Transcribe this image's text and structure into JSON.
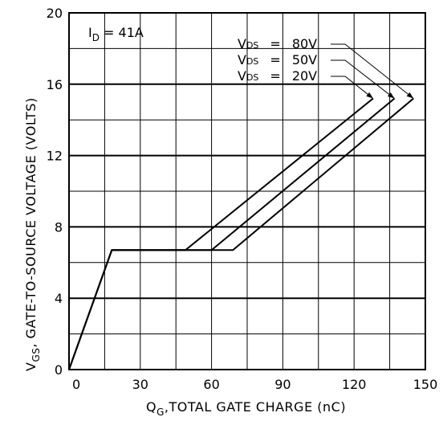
{
  "chart_data": {
    "type": "line",
    "title": "",
    "xlabel": {
      "main": "Q",
      "sub": "G",
      "rest": ",TOTAL GATE CHARGE (nC)"
    },
    "ylabel": {
      "main": "V",
      "sub": "GS",
      "rest": ", GATE-TO-SOURCE VOLTAGE (VOLTS)"
    },
    "xlim": [
      0,
      150
    ],
    "ylim": [
      0,
      20
    ],
    "x_ticks": [
      0,
      30,
      60,
      90,
      120,
      150
    ],
    "y_ticks": [
      0,
      4,
      8,
      12,
      16,
      20
    ],
    "grid": {
      "x_step": 15,
      "y_step": 2,
      "major_y": [
        4,
        8,
        12,
        16
      ]
    },
    "condition": {
      "main": "I",
      "sub": "D",
      "rest": " = 41A"
    },
    "series": [
      {
        "name": "VDS = 80V",
        "label_prefix": "V",
        "label_sub": "DS",
        "label_value": "80V",
        "x": [
          0,
          18,
          69,
          145
        ],
        "y": [
          0,
          6.7,
          6.7,
          15.2
        ]
      },
      {
        "name": "VDS = 50V",
        "label_prefix": "V",
        "label_sub": "DS",
        "label_value": "50V",
        "x": [
          0,
          18,
          60,
          137
        ],
        "y": [
          0,
          6.7,
          6.7,
          15.2
        ]
      },
      {
        "name": "VDS = 20V",
        "label_prefix": "V",
        "label_sub": "DS",
        "label_value": "20V",
        "x": [
          0,
          18,
          49,
          128
        ],
        "y": [
          0,
          6.7,
          6.7,
          15.2
        ]
      }
    ]
  }
}
